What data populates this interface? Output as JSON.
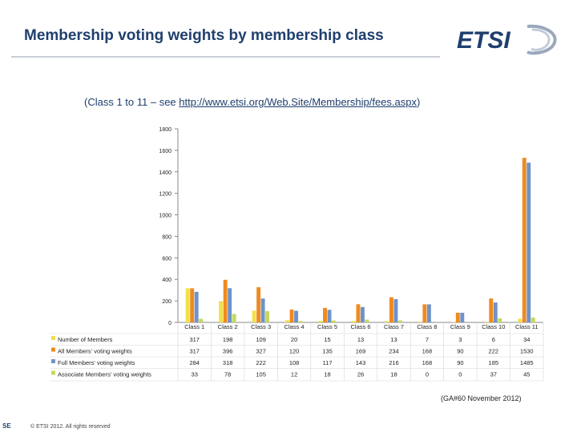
{
  "page": {
    "title": "Membership voting weights by membership class",
    "subtitle_prefix": "(Class 1 to 11 – see ",
    "subtitle_link": "http://www.etsi.org/Web.Site/Membership/fees.aspx",
    "subtitle_suffix": ")",
    "source": "(GA#60 November 2012)",
    "footer": "© ETSI 2012. All rights reserved",
    "logo_text": "ETSI",
    "footer_tag": "SE"
  },
  "colors": {
    "title": "#1f3f6e",
    "series": [
      "#f1e04a",
      "#f08a1e",
      "#6f93c8",
      "#c5d95a"
    ]
  },
  "chart_data": {
    "type": "bar",
    "categories": [
      "Class 1",
      "Class 2",
      "Class 3",
      "Class 4",
      "Class 5",
      "Class 6",
      "Class 7",
      "Class 8",
      "Class 9",
      "Class 10",
      "Class 11"
    ],
    "ylim": [
      0,
      1800
    ],
    "yticks": [
      0,
      200,
      400,
      600,
      800,
      1000,
      1200,
      1400,
      1600,
      1800
    ],
    "grid": false,
    "legend": "data-table-left",
    "series": [
      {
        "name": "Number of Members",
        "values": [
          317,
          198,
          109,
          20,
          15,
          13,
          13,
          7,
          3,
          6,
          34
        ]
      },
      {
        "name": "All Members' voting weights",
        "values": [
          317,
          396,
          327,
          120,
          135,
          169,
          234,
          168,
          90,
          222,
          1530
        ]
      },
      {
        "name": "Full Members' voting weights",
        "values": [
          284,
          318,
          222,
          108,
          117,
          143,
          216,
          168,
          90,
          185,
          1485
        ]
      },
      {
        "name": "Associate Members' voting weights",
        "values": [
          33,
          78,
          105,
          12,
          18,
          26,
          18,
          0,
          0,
          37,
          45
        ]
      }
    ]
  }
}
